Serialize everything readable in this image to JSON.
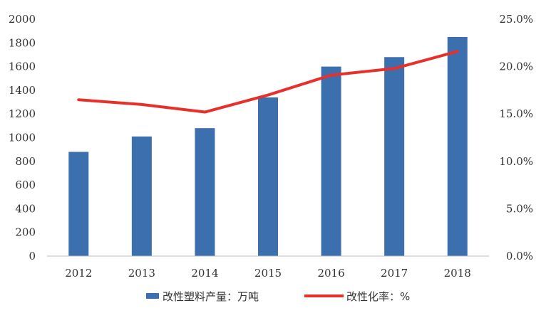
{
  "chart_data": {
    "type": "bar",
    "categories": [
      "2012",
      "2013",
      "2014",
      "2015",
      "2016",
      "2017",
      "2018"
    ],
    "series": [
      {
        "name": "改性塑料产量：万吨",
        "type": "bar",
        "axis": "left",
        "color": "#3c6fae",
        "values": [
          880,
          1010,
          1080,
          1340,
          1600,
          1680,
          1850
        ]
      },
      {
        "name": "改性化率：%",
        "type": "line",
        "axis": "right",
        "color": "#e8302a",
        "values": [
          16.5,
          16.0,
          15.2,
          17.0,
          19.1,
          19.8,
          21.6
        ]
      }
    ],
    "y_left": {
      "min": 0,
      "max": 2000,
      "step": 200,
      "tick_labels": [
        "0",
        "200",
        "400",
        "600",
        "800",
        "1000",
        "1200",
        "1400",
        "1600",
        "1800",
        "2000"
      ]
    },
    "y_right": {
      "min": 0,
      "max": 25,
      "step": 5,
      "tick_labels": [
        "0.0%",
        "5.0%",
        "10.0%",
        "15.0%",
        "20.0%",
        "25.0%"
      ]
    },
    "grid": false,
    "legend_position": "bottom"
  }
}
